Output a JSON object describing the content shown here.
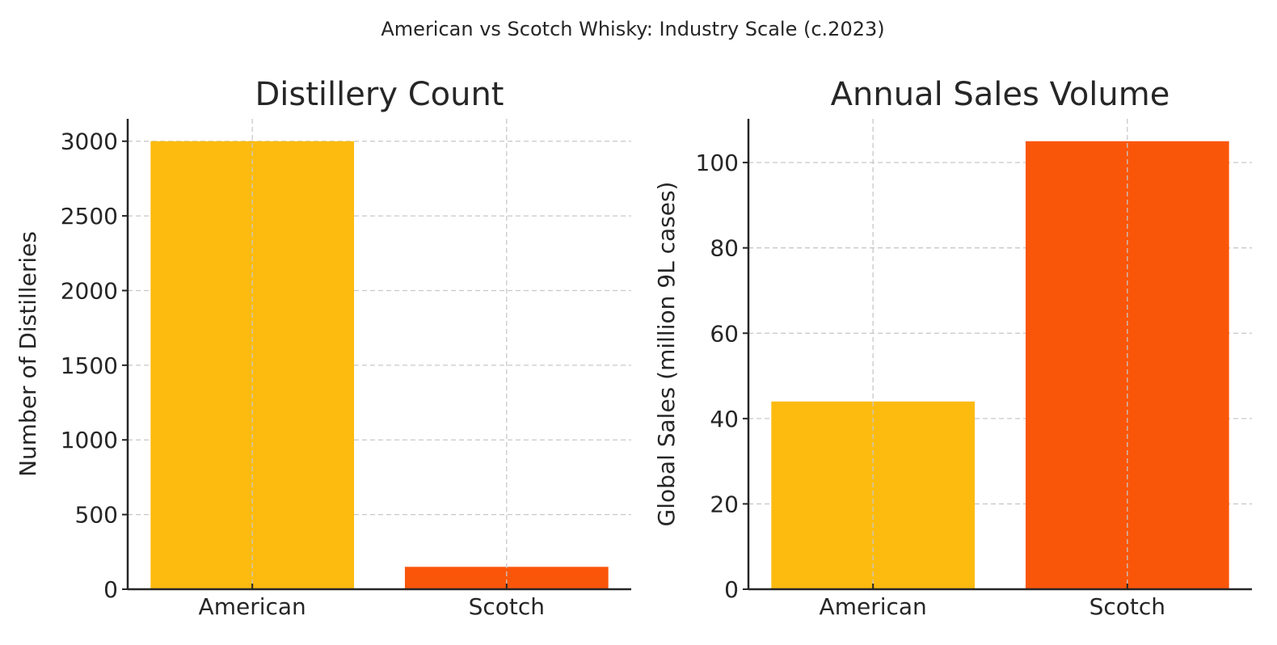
{
  "suptitle": "American vs Scotch Whisky: Industry Scale (c.2023)",
  "colors": {
    "American": "#fdbb10",
    "Scotch": "#fa560a"
  },
  "chart_data": [
    {
      "type": "bar",
      "title": "Distillery Count",
      "xlabel": "",
      "ylabel": "Number of Distilleries",
      "categories": [
        "American",
        "Scotch"
      ],
      "values": [
        3000,
        150
      ],
      "ylim": [
        0,
        3150
      ],
      "yticks": [
        0,
        500,
        1000,
        1500,
        2000,
        2500,
        3000
      ],
      "grid": true
    },
    {
      "type": "bar",
      "title": "Annual Sales Volume",
      "xlabel": "",
      "ylabel": "Global Sales (million 9L cases)",
      "categories": [
        "American",
        "Scotch"
      ],
      "values": [
        44,
        105
      ],
      "ylim": [
        0,
        110.25
      ],
      "yticks": [
        0,
        20,
        40,
        60,
        80,
        100
      ],
      "grid": true
    }
  ]
}
